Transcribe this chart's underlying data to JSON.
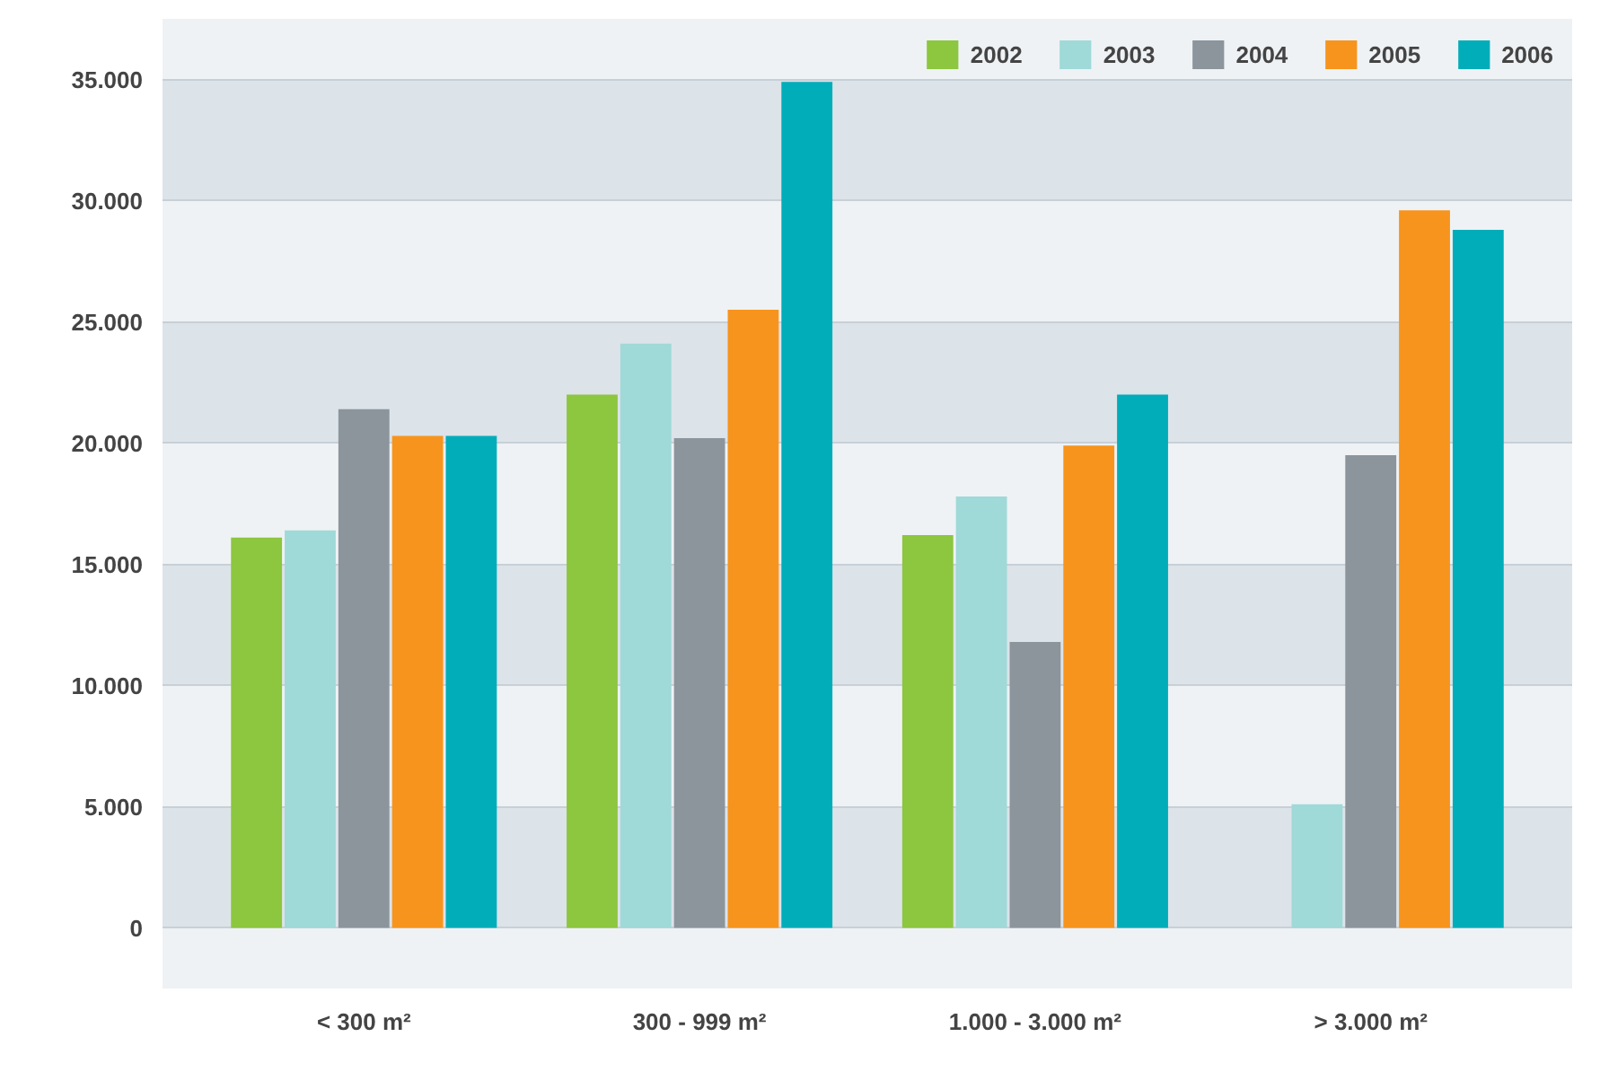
{
  "chart_data": {
    "type": "bar",
    "categories": [
      "< 300 m²",
      "300 - 999 m²",
      "1.000 - 3.000 m²",
      "> 3.000 m²"
    ],
    "series": [
      {
        "name": "2002",
        "color": "#8dc63f",
        "values": [
          16100,
          22000,
          16200,
          null
        ]
      },
      {
        "name": "2003",
        "color": "#9fd9d8",
        "values": [
          16400,
          24100,
          17800,
          5100
        ]
      },
      {
        "name": "2004",
        "color": "#8c959c",
        "values": [
          21400,
          20200,
          11800,
          19500
        ]
      },
      {
        "name": "2005",
        "color": "#f7941d",
        "values": [
          20300,
          25500,
          19900,
          29600
        ]
      },
      {
        "name": "2006",
        "color": "#00adb9",
        "values": [
          20300,
          34900,
          22000,
          28800
        ]
      }
    ],
    "ylim": [
      -2500,
      37500
    ],
    "yticks": [
      {
        "value": 0,
        "label": "0"
      },
      {
        "value": 5000,
        "label": "5.000"
      },
      {
        "value": 10000,
        "label": "10.000"
      },
      {
        "value": 15000,
        "label": "15.000"
      },
      {
        "value": 20000,
        "label": "20.000"
      },
      {
        "value": 25000,
        "label": "25.000"
      },
      {
        "value": 30000,
        "label": "30.000"
      },
      {
        "value": 35000,
        "label": "35.000"
      }
    ],
    "grid": "y",
    "legend": "top right"
  }
}
